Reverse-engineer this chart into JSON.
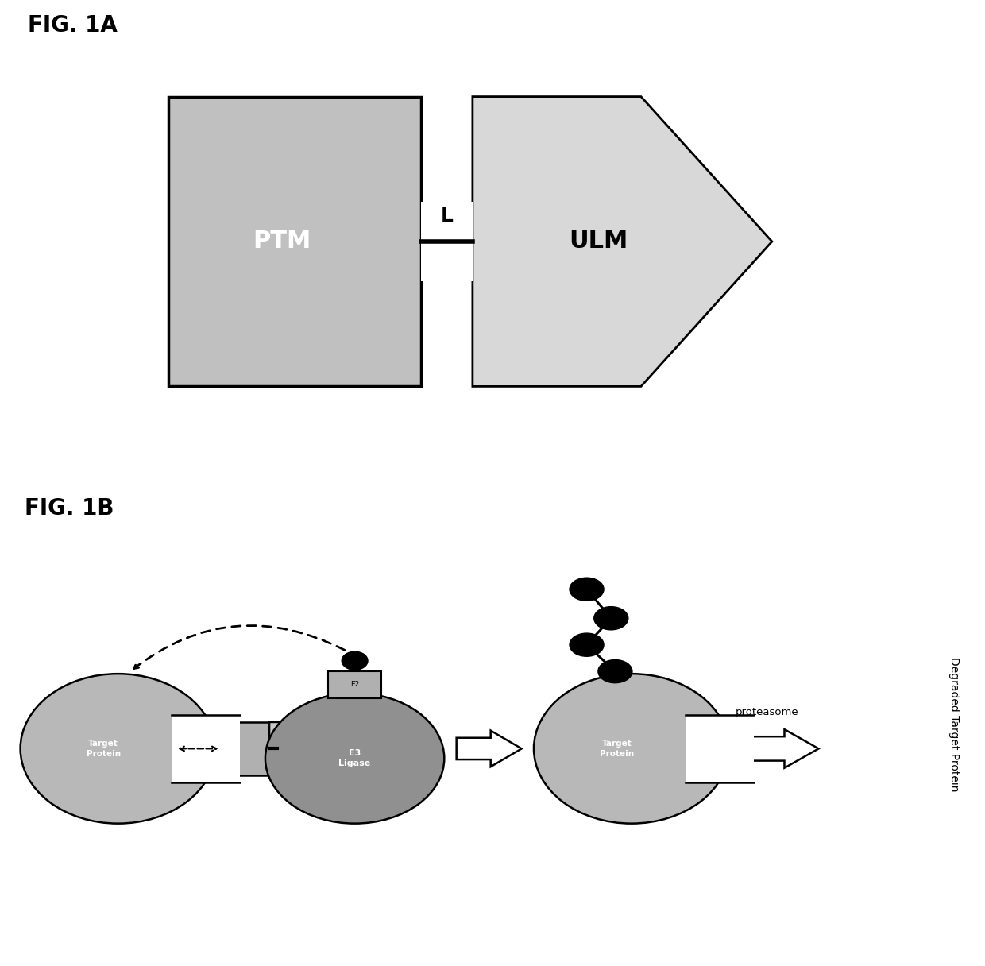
{
  "fig_title_1a": "FIG. 1A",
  "fig_title_1b": "FIG. 1B",
  "ptm_label": "PTM",
  "ulm_label": "ULM",
  "l_label": "L",
  "e2_label": "E2",
  "e3_label": "E3\nLigase",
  "target_protein_label": "Target\nProtein",
  "target_protein_label2": "Target\nProtein",
  "proteasome_label": "proteasome",
  "degraded_label": "Degraded Target Protein",
  "ptm_gray": "#c0c0c0",
  "ulm_gray": "#d8d8d8",
  "e3_gray": "#909090",
  "e2_gray": "#b0b0b0",
  "target_gray": "#b8b8b8",
  "linker_gray": "#c8c8c8",
  "black": "#000000",
  "white": "#ffffff",
  "bg": "#ffffff"
}
